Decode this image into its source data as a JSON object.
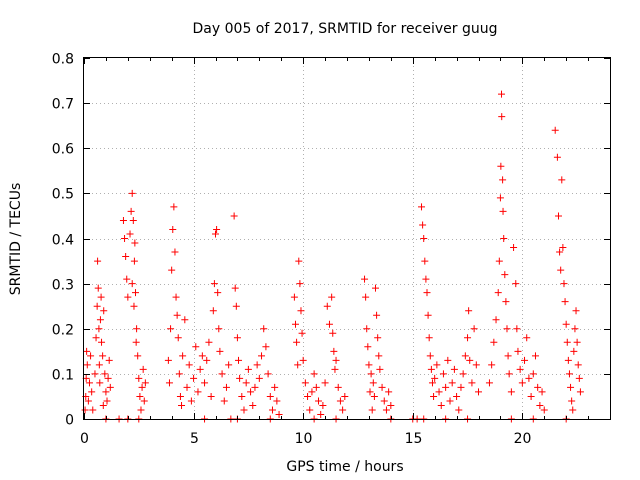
{
  "chart_data": {
    "type": "scatter",
    "title": "Day 005 of 2017, SRMTID for receiver guug",
    "xlabel": "GPS time / hours",
    "ylabel": "SRMTID / TECUs",
    "xlim": [
      0,
      24
    ],
    "ylim": [
      0,
      0.8
    ],
    "xticks": [
      0,
      5,
      10,
      15,
      20
    ],
    "xtick_labels": [
      "0",
      "5",
      "10",
      "15",
      "20"
    ],
    "yticks": [
      0,
      0.1,
      0.2,
      0.3,
      0.4,
      0.5,
      0.6,
      0.7,
      0.8
    ],
    "ytick_labels": [
      "0",
      "0.1",
      "0.2",
      "0.3",
      "0.4",
      "0.5",
      "0.6",
      "0.7",
      "0.8"
    ],
    "grid": true,
    "marker": "+",
    "marker_color": "#ff0000",
    "series": [
      {
        "name": "SRMTID",
        "points": [
          [
            0.05,
            0.02
          ],
          [
            0.08,
            0.05
          ],
          [
            0.1,
            0.09
          ],
          [
            0.12,
            0.15
          ],
          [
            0.15,
            0.12
          ],
          [
            0.2,
            0.04
          ],
          [
            0.25,
            0.08
          ],
          [
            0.3,
            0.14
          ],
          [
            0.35,
            0.06
          ],
          [
            0.4,
            0.02
          ],
          [
            0.5,
            0.1
          ],
          [
            0.55,
            0.18
          ],
          [
            0.6,
            0.25
          ],
          [
            0.62,
            0.35
          ],
          [
            0.65,
            0.29
          ],
          [
            0.68,
            0.2
          ],
          [
            0.7,
            0.12
          ],
          [
            0.72,
            0.08
          ],
          [
            0.75,
            0.22
          ],
          [
            0.78,
            0.27
          ],
          [
            0.8,
            0.17
          ],
          [
            0.85,
            0.14
          ],
          [
            0.9,
            0.24
          ],
          [
            0.95,
            0.1
          ],
          [
            1.0,
            0.06
          ],
          [
            1.05,
            0.04
          ],
          [
            1.1,
            0.09
          ],
          [
            1.15,
            0.13
          ],
          [
            1.2,
            0.07
          ],
          [
            0.88,
            0.03
          ],
          [
            1.0,
            0.0
          ],
          [
            1.6,
            0.0
          ],
          [
            2.0,
            0.0
          ],
          [
            1.8,
            0.44
          ],
          [
            1.85,
            0.4
          ],
          [
            1.9,
            0.36
          ],
          [
            1.95,
            0.31
          ],
          [
            2.0,
            0.27
          ],
          [
            2.1,
            0.41
          ],
          [
            2.15,
            0.46
          ],
          [
            2.2,
            0.5
          ],
          [
            2.25,
            0.44
          ],
          [
            2.3,
            0.35
          ],
          [
            2.35,
            0.28
          ],
          [
            2.4,
            0.2
          ],
          [
            2.45,
            0.14
          ],
          [
            2.5,
            0.09
          ],
          [
            2.55,
            0.05
          ],
          [
            2.6,
            0.02
          ],
          [
            2.65,
            0.07
          ],
          [
            2.7,
            0.11
          ],
          [
            2.75,
            0.04
          ],
          [
            2.8,
            0.08
          ],
          [
            2.5,
            0.0
          ],
          [
            2.2,
            0.3
          ],
          [
            2.28,
            0.25
          ],
          [
            2.32,
            0.39
          ],
          [
            2.38,
            0.17
          ],
          [
            3.85,
            0.13
          ],
          [
            3.9,
            0.08
          ],
          [
            3.95,
            0.2
          ],
          [
            4.0,
            0.33
          ],
          [
            4.05,
            0.42
          ],
          [
            4.1,
            0.47
          ],
          [
            4.15,
            0.37
          ],
          [
            4.2,
            0.27
          ],
          [
            4.25,
            0.23
          ],
          [
            4.3,
            0.18
          ],
          [
            4.35,
            0.1
          ],
          [
            4.4,
            0.05
          ],
          [
            4.45,
            0.03
          ],
          [
            4.5,
            0.14
          ],
          [
            4.6,
            0.22
          ],
          [
            4.7,
            0.07
          ],
          [
            4.8,
            0.12
          ],
          [
            4.9,
            0.04
          ],
          [
            5.0,
            0.09
          ],
          [
            5.1,
            0.16
          ],
          [
            5.2,
            0.06
          ],
          [
            5.3,
            0.11
          ],
          [
            5.4,
            0.14
          ],
          [
            5.5,
            0.08
          ],
          [
            5.6,
            0.13
          ],
          [
            5.7,
            0.17
          ],
          [
            5.8,
            0.05
          ],
          [
            5.9,
            0.24
          ],
          [
            5.95,
            0.3
          ],
          [
            6.0,
            0.41
          ],
          [
            6.05,
            0.42
          ],
          [
            6.1,
            0.28
          ],
          [
            6.15,
            0.2
          ],
          [
            6.2,
            0.15
          ],
          [
            6.3,
            0.1
          ],
          [
            6.4,
            0.04
          ],
          [
            6.5,
            0.07
          ],
          [
            6.6,
            0.12
          ],
          [
            6.7,
            0.0
          ],
          [
            6.85,
            0.45
          ],
          [
            6.9,
            0.29
          ],
          [
            6.95,
            0.25
          ],
          [
            7.0,
            0.18
          ],
          [
            7.05,
            0.13
          ],
          [
            7.1,
            0.09
          ],
          [
            7.2,
            0.05
          ],
          [
            7.3,
            0.02
          ],
          [
            7.4,
            0.08
          ],
          [
            7.5,
            0.11
          ],
          [
            7.6,
            0.06
          ],
          [
            7.7,
            0.03
          ],
          [
            7.8,
            0.07
          ],
          [
            7.9,
            0.12
          ],
          [
            8.0,
            0.09
          ],
          [
            8.1,
            0.14
          ],
          [
            8.2,
            0.2
          ],
          [
            8.3,
            0.16
          ],
          [
            8.4,
            0.1
          ],
          [
            8.5,
            0.05
          ],
          [
            8.6,
            0.02
          ],
          [
            8.7,
            0.07
          ],
          [
            8.8,
            0.04
          ],
          [
            8.9,
            0.01
          ],
          [
            5.5,
            0.0
          ],
          [
            7.0,
            0.0
          ],
          [
            8.5,
            0.0
          ],
          [
            9.6,
            0.27
          ],
          [
            9.65,
            0.21
          ],
          [
            9.7,
            0.17
          ],
          [
            9.75,
            0.12
          ],
          [
            9.8,
            0.35
          ],
          [
            9.85,
            0.3
          ],
          [
            9.9,
            0.24
          ],
          [
            9.95,
            0.19
          ],
          [
            10.0,
            0.13
          ],
          [
            10.1,
            0.08
          ],
          [
            10.2,
            0.05
          ],
          [
            10.3,
            0.02
          ],
          [
            10.4,
            0.06
          ],
          [
            10.5,
            0.1
          ],
          [
            10.6,
            0.07
          ],
          [
            10.7,
            0.04
          ],
          [
            10.8,
            0.01
          ],
          [
            10.9,
            0.03
          ],
          [
            11.0,
            0.08
          ],
          [
            11.1,
            0.25
          ],
          [
            11.2,
            0.21
          ],
          [
            11.3,
            0.27
          ],
          [
            11.35,
            0.19
          ],
          [
            11.4,
            0.15
          ],
          [
            11.45,
            0.11
          ],
          [
            11.5,
            0.13
          ],
          [
            11.6,
            0.07
          ],
          [
            11.7,
            0.04
          ],
          [
            11.8,
            0.02
          ],
          [
            11.9,
            0.05
          ],
          [
            10.5,
            0.0
          ],
          [
            11.5,
            0.0
          ],
          [
            12.8,
            0.31
          ],
          [
            12.85,
            0.27
          ],
          [
            12.9,
            0.2
          ],
          [
            12.95,
            0.16
          ],
          [
            13.0,
            0.12
          ],
          [
            13.1,
            0.1
          ],
          [
            13.2,
            0.08
          ],
          [
            13.3,
            0.29
          ],
          [
            13.35,
            0.23
          ],
          [
            13.4,
            0.18
          ],
          [
            13.45,
            0.14
          ],
          [
            13.5,
            0.11
          ],
          [
            13.6,
            0.07
          ],
          [
            13.7,
            0.04
          ],
          [
            13.8,
            0.02
          ],
          [
            13.9,
            0.06
          ],
          [
            14.0,
            0.03
          ],
          [
            13.05,
            0.06
          ],
          [
            13.15,
            0.02
          ],
          [
            13.25,
            0.05
          ],
          [
            14.0,
            0.0
          ],
          [
            15.0,
            0.0
          ],
          [
            15.2,
            0.0
          ],
          [
            15.4,
            0.47
          ],
          [
            15.45,
            0.43
          ],
          [
            15.5,
            0.4
          ],
          [
            15.55,
            0.35
          ],
          [
            15.6,
            0.31
          ],
          [
            15.65,
            0.28
          ],
          [
            15.7,
            0.23
          ],
          [
            15.75,
            0.18
          ],
          [
            15.8,
            0.14
          ],
          [
            15.85,
            0.11
          ],
          [
            15.9,
            0.08
          ],
          [
            15.95,
            0.05
          ],
          [
            16.0,
            0.09
          ],
          [
            16.1,
            0.12
          ],
          [
            16.2,
            0.06
          ],
          [
            16.3,
            0.03
          ],
          [
            16.4,
            0.1
          ],
          [
            16.5,
            0.07
          ],
          [
            16.6,
            0.13
          ],
          [
            16.7,
            0.04
          ],
          [
            16.8,
            0.08
          ],
          [
            16.9,
            0.11
          ],
          [
            17.0,
            0.05
          ],
          [
            17.1,
            0.02
          ],
          [
            17.2,
            0.07
          ],
          [
            17.3,
            0.1
          ],
          [
            17.4,
            0.14
          ],
          [
            17.5,
            0.18
          ],
          [
            17.55,
            0.24
          ],
          [
            17.6,
            0.13
          ],
          [
            17.7,
            0.08
          ],
          [
            17.8,
            0.2
          ],
          [
            17.9,
            0.12
          ],
          [
            18.0,
            0.06
          ],
          [
            16.5,
            0.0
          ],
          [
            17.5,
            0.0
          ],
          [
            15.5,
            0.0
          ],
          [
            18.5,
            0.08
          ],
          [
            18.6,
            0.12
          ],
          [
            18.7,
            0.17
          ],
          [
            18.8,
            0.22
          ],
          [
            18.9,
            0.28
          ],
          [
            18.95,
            0.35
          ],
          [
            19.0,
            0.49
          ],
          [
            19.02,
            0.56
          ],
          [
            19.05,
            0.72
          ],
          [
            19.06,
            0.67
          ],
          [
            19.1,
            0.53
          ],
          [
            19.12,
            0.46
          ],
          [
            19.15,
            0.4
          ],
          [
            19.2,
            0.32
          ],
          [
            19.25,
            0.26
          ],
          [
            19.3,
            0.2
          ],
          [
            19.35,
            0.14
          ],
          [
            19.4,
            0.1
          ],
          [
            19.5,
            0.06
          ],
          [
            19.6,
            0.38
          ],
          [
            19.7,
            0.3
          ],
          [
            19.75,
            0.2
          ],
          [
            19.8,
            0.15
          ],
          [
            19.9,
            0.11
          ],
          [
            20.0,
            0.08
          ],
          [
            20.1,
            0.13
          ],
          [
            20.2,
            0.18
          ],
          [
            20.3,
            0.09
          ],
          [
            20.4,
            0.05
          ],
          [
            20.5,
            0.1
          ],
          [
            20.6,
            0.14
          ],
          [
            20.7,
            0.07
          ],
          [
            20.8,
            0.03
          ],
          [
            20.9,
            0.06
          ],
          [
            21.0,
            0.02
          ],
          [
            19.5,
            0.0
          ],
          [
            20.5,
            0.0
          ],
          [
            21.5,
            0.64
          ],
          [
            21.6,
            0.58
          ],
          [
            21.65,
            0.45
          ],
          [
            21.7,
            0.37
          ],
          [
            21.75,
            0.33
          ],
          [
            21.8,
            0.53
          ],
          [
            21.85,
            0.38
          ],
          [
            21.9,
            0.3
          ],
          [
            21.95,
            0.26
          ],
          [
            22.0,
            0.21
          ],
          [
            22.05,
            0.17
          ],
          [
            22.1,
            0.13
          ],
          [
            22.15,
            0.1
          ],
          [
            22.2,
            0.07
          ],
          [
            22.25,
            0.04
          ],
          [
            22.3,
            0.02
          ],
          [
            22.35,
            0.15
          ],
          [
            22.4,
            0.2
          ],
          [
            22.45,
            0.24
          ],
          [
            22.5,
            0.17
          ],
          [
            22.55,
            0.12
          ],
          [
            22.6,
            0.09
          ],
          [
            22.65,
            0.06
          ],
          [
            22.0,
            0.0
          ]
        ]
      }
    ]
  }
}
